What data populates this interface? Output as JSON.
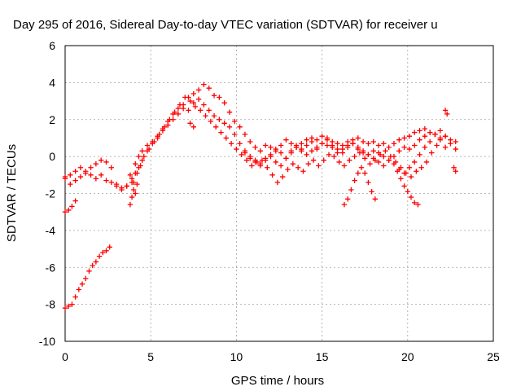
{
  "chart_data": {
    "type": "scatter",
    "title": "Day 295 of 2016, Sidereal Day-to-day VTEC variation (SDTVAR) for receiver u",
    "xlabel": "GPS time / hours",
    "ylabel": "SDTVAR / TECUs",
    "xlim": [
      0,
      25
    ],
    "ylim": [
      -10,
      6
    ],
    "x_ticks": [
      "0",
      "5",
      "10",
      "15",
      "20",
      "25"
    ],
    "y_ticks": [
      "-10",
      "-8",
      "-6",
      "-4",
      "-2",
      "0",
      "2",
      "4",
      "6"
    ],
    "grid": true,
    "marker": "plus",
    "color": "#ff0000",
    "series": [
      {
        "x": [
          0.0,
          0.3,
          0.6,
          0.9,
          1.2,
          1.5,
          1.8,
          2.1,
          2.4,
          2.7,
          3.0,
          3.3,
          3.6,
          3.9,
          4.1,
          4.3,
          4.5,
          4.8,
          5.1,
          5.4,
          5.7,
          6.0,
          6.3,
          6.6,
          6.9,
          7.2,
          7.5,
          7.8,
          8.1,
          8.4,
          8.7,
          9.0,
          9.3,
          9.6,
          9.9,
          10.2,
          10.5,
          10.8,
          11.1,
          11.4,
          11.7,
          12.0,
          12.3,
          12.6,
          12.9,
          13.2,
          13.5,
          13.8,
          14.1,
          14.4,
          14.7,
          15.0,
          15.3,
          15.6,
          15.9,
          16.2,
          16.5,
          16.8,
          17.1,
          17.4,
          17.7,
          18.0,
          18.3,
          18.6,
          18.9,
          19.2,
          19.5,
          19.8,
          20.1,
          20.4,
          20.7,
          21.0,
          21.3,
          21.6,
          21.9,
          22.2,
          22.5,
          22.8
        ],
        "y": [
          -1.1,
          -1.0,
          -0.8,
          -0.6,
          -0.8,
          -0.6,
          -0.4,
          -0.2,
          -0.3,
          -0.6,
          -1.6,
          -1.8,
          -1.6,
          -1.2,
          -0.4,
          0.0,
          0.3,
          0.6,
          0.8,
          1.1,
          1.5,
          1.9,
          2.3,
          2.6,
          2.8,
          3.2,
          3.4,
          3.6,
          3.9,
          3.7,
          3.3,
          3.2,
          2.9,
          2.4,
          1.9,
          1.6,
          1.2,
          0.8,
          0.5,
          0.3,
          0.6,
          0.5,
          0.3,
          0.6,
          0.9,
          0.7,
          0.5,
          0.7,
          0.9,
          1.0,
          0.9,
          1.1,
          1.0,
          0.8,
          0.7,
          0.6,
          0.8,
          0.9,
          1.0,
          0.8,
          0.7,
          0.8,
          0.6,
          0.7,
          0.5,
          0.7,
          0.9,
          1.0,
          1.1,
          1.3,
          1.4,
          1.5,
          1.3,
          1.2,
          1.0,
          1.1,
          0.9,
          0.8
        ]
      },
      {
        "x": [
          0.0,
          0.3,
          0.6,
          0.9,
          1.2,
          1.5,
          1.8,
          2.1,
          2.4,
          2.7,
          3.0,
          3.3,
          3.6,
          3.9,
          4.1,
          4.3,
          4.5,
          4.8,
          5.1,
          5.4,
          5.7,
          6.0,
          6.3,
          6.6,
          6.9,
          7.2,
          7.5,
          7.8,
          8.1,
          8.4,
          8.7,
          9.0,
          9.3,
          9.6,
          9.9,
          10.2,
          10.5,
          10.8,
          11.1,
          11.4,
          11.7,
          12.0,
          12.3,
          12.6,
          12.9,
          13.2,
          13.5,
          13.8,
          14.1,
          14.4,
          14.7,
          15.0,
          15.3,
          15.6,
          15.9,
          16.2,
          16.5,
          16.8,
          17.1,
          17.4,
          17.7,
          18.0,
          18.3,
          18.6,
          18.9,
          19.2,
          19.5,
          19.8,
          20.1,
          20.4,
          20.7,
          21.0,
          21.3,
          21.6,
          21.9,
          22.2
        ],
        "y": [
          -1.2,
          -1.5,
          -1.3,
          -1.1,
          -0.9,
          -1.0,
          -1.2,
          -1.0,
          -1.3,
          -1.4,
          -1.5,
          -1.7,
          -1.6,
          -1.4,
          -0.9,
          -0.6,
          -0.2,
          0.3,
          0.7,
          1.0,
          1.4,
          1.7,
          2.0,
          2.3,
          2.6,
          2.5,
          2.9,
          3.1,
          2.8,
          2.5,
          2.2,
          2.0,
          1.8,
          1.6,
          1.2,
          0.7,
          0.3,
          0.0,
          -0.2,
          -0.4,
          -0.1,
          0.0,
          -0.3,
          -0.5,
          -0.1,
          0.3,
          0.6,
          0.4,
          0.1,
          0.3,
          0.5,
          0.7,
          0.6,
          0.5,
          0.2,
          0.4,
          0.6,
          0.7,
          0.4,
          0.2,
          0.1,
          0.3,
          0.2,
          0.0,
          -0.2,
          0.0,
          0.3,
          0.5,
          0.4,
          0.6,
          0.9,
          1.1,
          1.3,
          1.2,
          0.9,
          0.5
        ]
      },
      {
        "x": [
          3.8,
          4.0,
          4.2,
          4.4,
          4.6,
          4.9,
          5.2,
          5.5,
          5.8,
          6.1,
          6.4,
          6.7,
          7.0,
          7.3,
          7.6,
          7.9,
          8.2,
          8.5,
          8.8,
          9.1,
          9.4,
          9.7,
          10.0,
          10.3,
          10.6,
          10.9,
          11.2,
          11.5,
          11.8,
          12.1,
          12.4,
          12.7,
          13.0,
          13.3,
          13.6,
          13.9,
          14.2,
          14.5,
          14.8,
          15.1,
          15.4,
          15.7,
          16.0,
          16.3,
          16.6,
          16.9,
          17.2,
          17.5,
          17.8,
          18.1,
          18.4,
          18.7,
          19.0,
          19.3,
          19.6,
          19.9,
          20.2,
          20.5,
          20.8,
          21.1,
          21.4,
          21.7
        ],
        "y": [
          -1.0,
          -1.4,
          -0.9,
          -0.5,
          0.0,
          0.4,
          0.8,
          1.2,
          1.6,
          2.0,
          2.4,
          2.8,
          3.2,
          3.0,
          2.7,
          2.5,
          2.2,
          1.9,
          1.6,
          1.3,
          1.0,
          0.7,
          0.4,
          0.1,
          -0.2,
          -0.5,
          -0.3,
          -0.2,
          -0.6,
          -1.0,
          -1.4,
          -1.1,
          -0.7,
          -0.4,
          -0.6,
          -0.8,
          -0.4,
          -0.2,
          -0.5,
          -0.2,
          0.1,
          0.0,
          -0.3,
          -0.5,
          -0.2,
          0.0,
          0.2,
          -0.1,
          -0.4,
          -0.2,
          0.1,
          0.3,
          0.0,
          -0.3,
          -0.6,
          -0.9,
          -1.1,
          -0.8,
          -0.6,
          -0.3,
          0.2,
          0.6
        ]
      },
      {
        "x": [
          10.5,
          10.8,
          11.1,
          11.4,
          11.7,
          12.0,
          12.3,
          12.6,
          12.9,
          13.2,
          13.5,
          13.8,
          14.1,
          14.4,
          14.7,
          15.0,
          15.3,
          15.6,
          15.9,
          16.2,
          16.5,
          16.8,
          17.1,
          17.4,
          17.7,
          18.0,
          18.3,
          18.6,
          18.9,
          19.2,
          19.5,
          19.8,
          20.1,
          20.4,
          20.7,
          21.0,
          21.3,
          21.6,
          21.9,
          22.2,
          22.5,
          22.8
        ],
        "y": [
          0.2,
          -0.1,
          -0.3,
          -0.5,
          -0.2,
          0.1,
          0.4,
          0.2,
          -0.1,
          0.2,
          0.5,
          0.3,
          0.6,
          0.8,
          0.4,
          0.7,
          0.9,
          0.6,
          0.4,
          0.2,
          0.5,
          0.7,
          0.5,
          0.3,
          0.1,
          -0.1,
          -0.3,
          -0.5,
          -0.2,
          -0.4,
          -0.7,
          -0.9,
          -0.6,
          -0.3,
          0.1,
          0.5,
          0.8,
          1.2,
          1.4,
          1.1,
          0.7,
          0.4
        ]
      },
      {
        "x": [
          16.3,
          16.5,
          16.7,
          16.9,
          17.1,
          17.3,
          17.5,
          17.7,
          17.9,
          18.1
        ],
        "y": [
          -2.6,
          -2.3,
          -1.8,
          -1.3,
          -0.9,
          -0.6,
          -0.9,
          -1.4,
          -1.9,
          -2.3
        ]
      },
      {
        "x": [
          19.4,
          19.6,
          19.8,
          20.0,
          20.2,
          20.4,
          20.6
        ],
        "y": [
          -0.8,
          -1.2,
          -1.6,
          -1.9,
          -2.2,
          -2.5,
          -2.6
        ]
      },
      {
        "x": [
          0.0,
          0.2,
          0.4,
          0.6
        ],
        "y": [
          -3.0,
          -2.9,
          -2.7,
          -2.4
        ]
      },
      {
        "x": [
          0.0,
          0.2,
          0.4,
          0.6,
          0.8,
          1.0,
          1.2,
          1.4,
          1.6,
          1.8,
          2.0,
          2.2,
          2.4,
          2.6
        ],
        "y": [
          -8.2,
          -8.1,
          -8.0,
          -7.6,
          -7.2,
          -6.9,
          -6.6,
          -6.2,
          -5.9,
          -5.7,
          -5.4,
          -5.2,
          -5.1,
          -4.9
        ]
      },
      {
        "x": [
          3.8,
          3.9,
          4.0,
          4.1,
          4.2,
          7.3,
          7.5,
          22.2,
          22.3,
          22.7,
          22.8
        ],
        "y": [
          -2.6,
          -2.2,
          -1.8,
          -2.0,
          -1.5,
          1.8,
          1.6,
          2.5,
          2.3,
          -0.6,
          -0.8
        ]
      }
    ]
  }
}
